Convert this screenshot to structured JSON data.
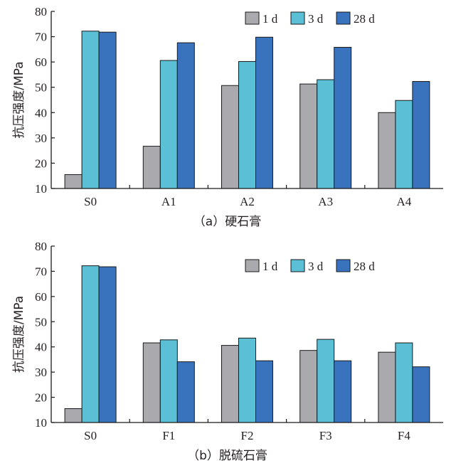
{
  "chart_data": [
    {
      "id": "a",
      "type": "bar",
      "caption": "（a）硬石膏",
      "ylabel": "抗压强度/MPa",
      "ylim": [
        10,
        80
      ],
      "yticks": [
        10,
        20,
        30,
        40,
        50,
        60,
        70,
        80
      ],
      "categories": [
        "S0",
        "A1",
        "A2",
        "A3",
        "A4"
      ],
      "series": [
        {
          "name": "1 d",
          "color": "#a9a9ae",
          "values": [
            15.5,
            26.7,
            50.7,
            51.3,
            40.0
          ]
        },
        {
          "name": "3 d",
          "color": "#5bc0d6",
          "values": [
            72.2,
            60.6,
            60.2,
            53.0,
            44.8
          ]
        },
        {
          "name": "28 d",
          "color": "#3a73bd",
          "values": [
            71.8,
            67.6,
            69.8,
            65.8,
            52.3
          ]
        }
      ],
      "legend": "top-right",
      "grid": false
    },
    {
      "id": "b",
      "type": "bar",
      "caption": "（b）脱硫石膏",
      "ylabel": "抗压强度/MPa",
      "ylim": [
        10,
        80
      ],
      "yticks": [
        10,
        20,
        30,
        40,
        50,
        60,
        70,
        80
      ],
      "categories": [
        "S0",
        "F1",
        "F2",
        "F3",
        "F4"
      ],
      "series": [
        {
          "name": "1 d",
          "color": "#a9a9ae",
          "values": [
            15.5,
            41.6,
            40.6,
            38.6,
            37.9
          ]
        },
        {
          "name": "3 d",
          "color": "#5bc0d6",
          "values": [
            72.2,
            42.8,
            43.5,
            43.0,
            41.6
          ]
        },
        {
          "name": "28 d",
          "color": "#3a73bd",
          "values": [
            71.8,
            34.1,
            34.5,
            34.5,
            32.1
          ]
        }
      ],
      "legend": "top-right",
      "grid": false
    }
  ]
}
